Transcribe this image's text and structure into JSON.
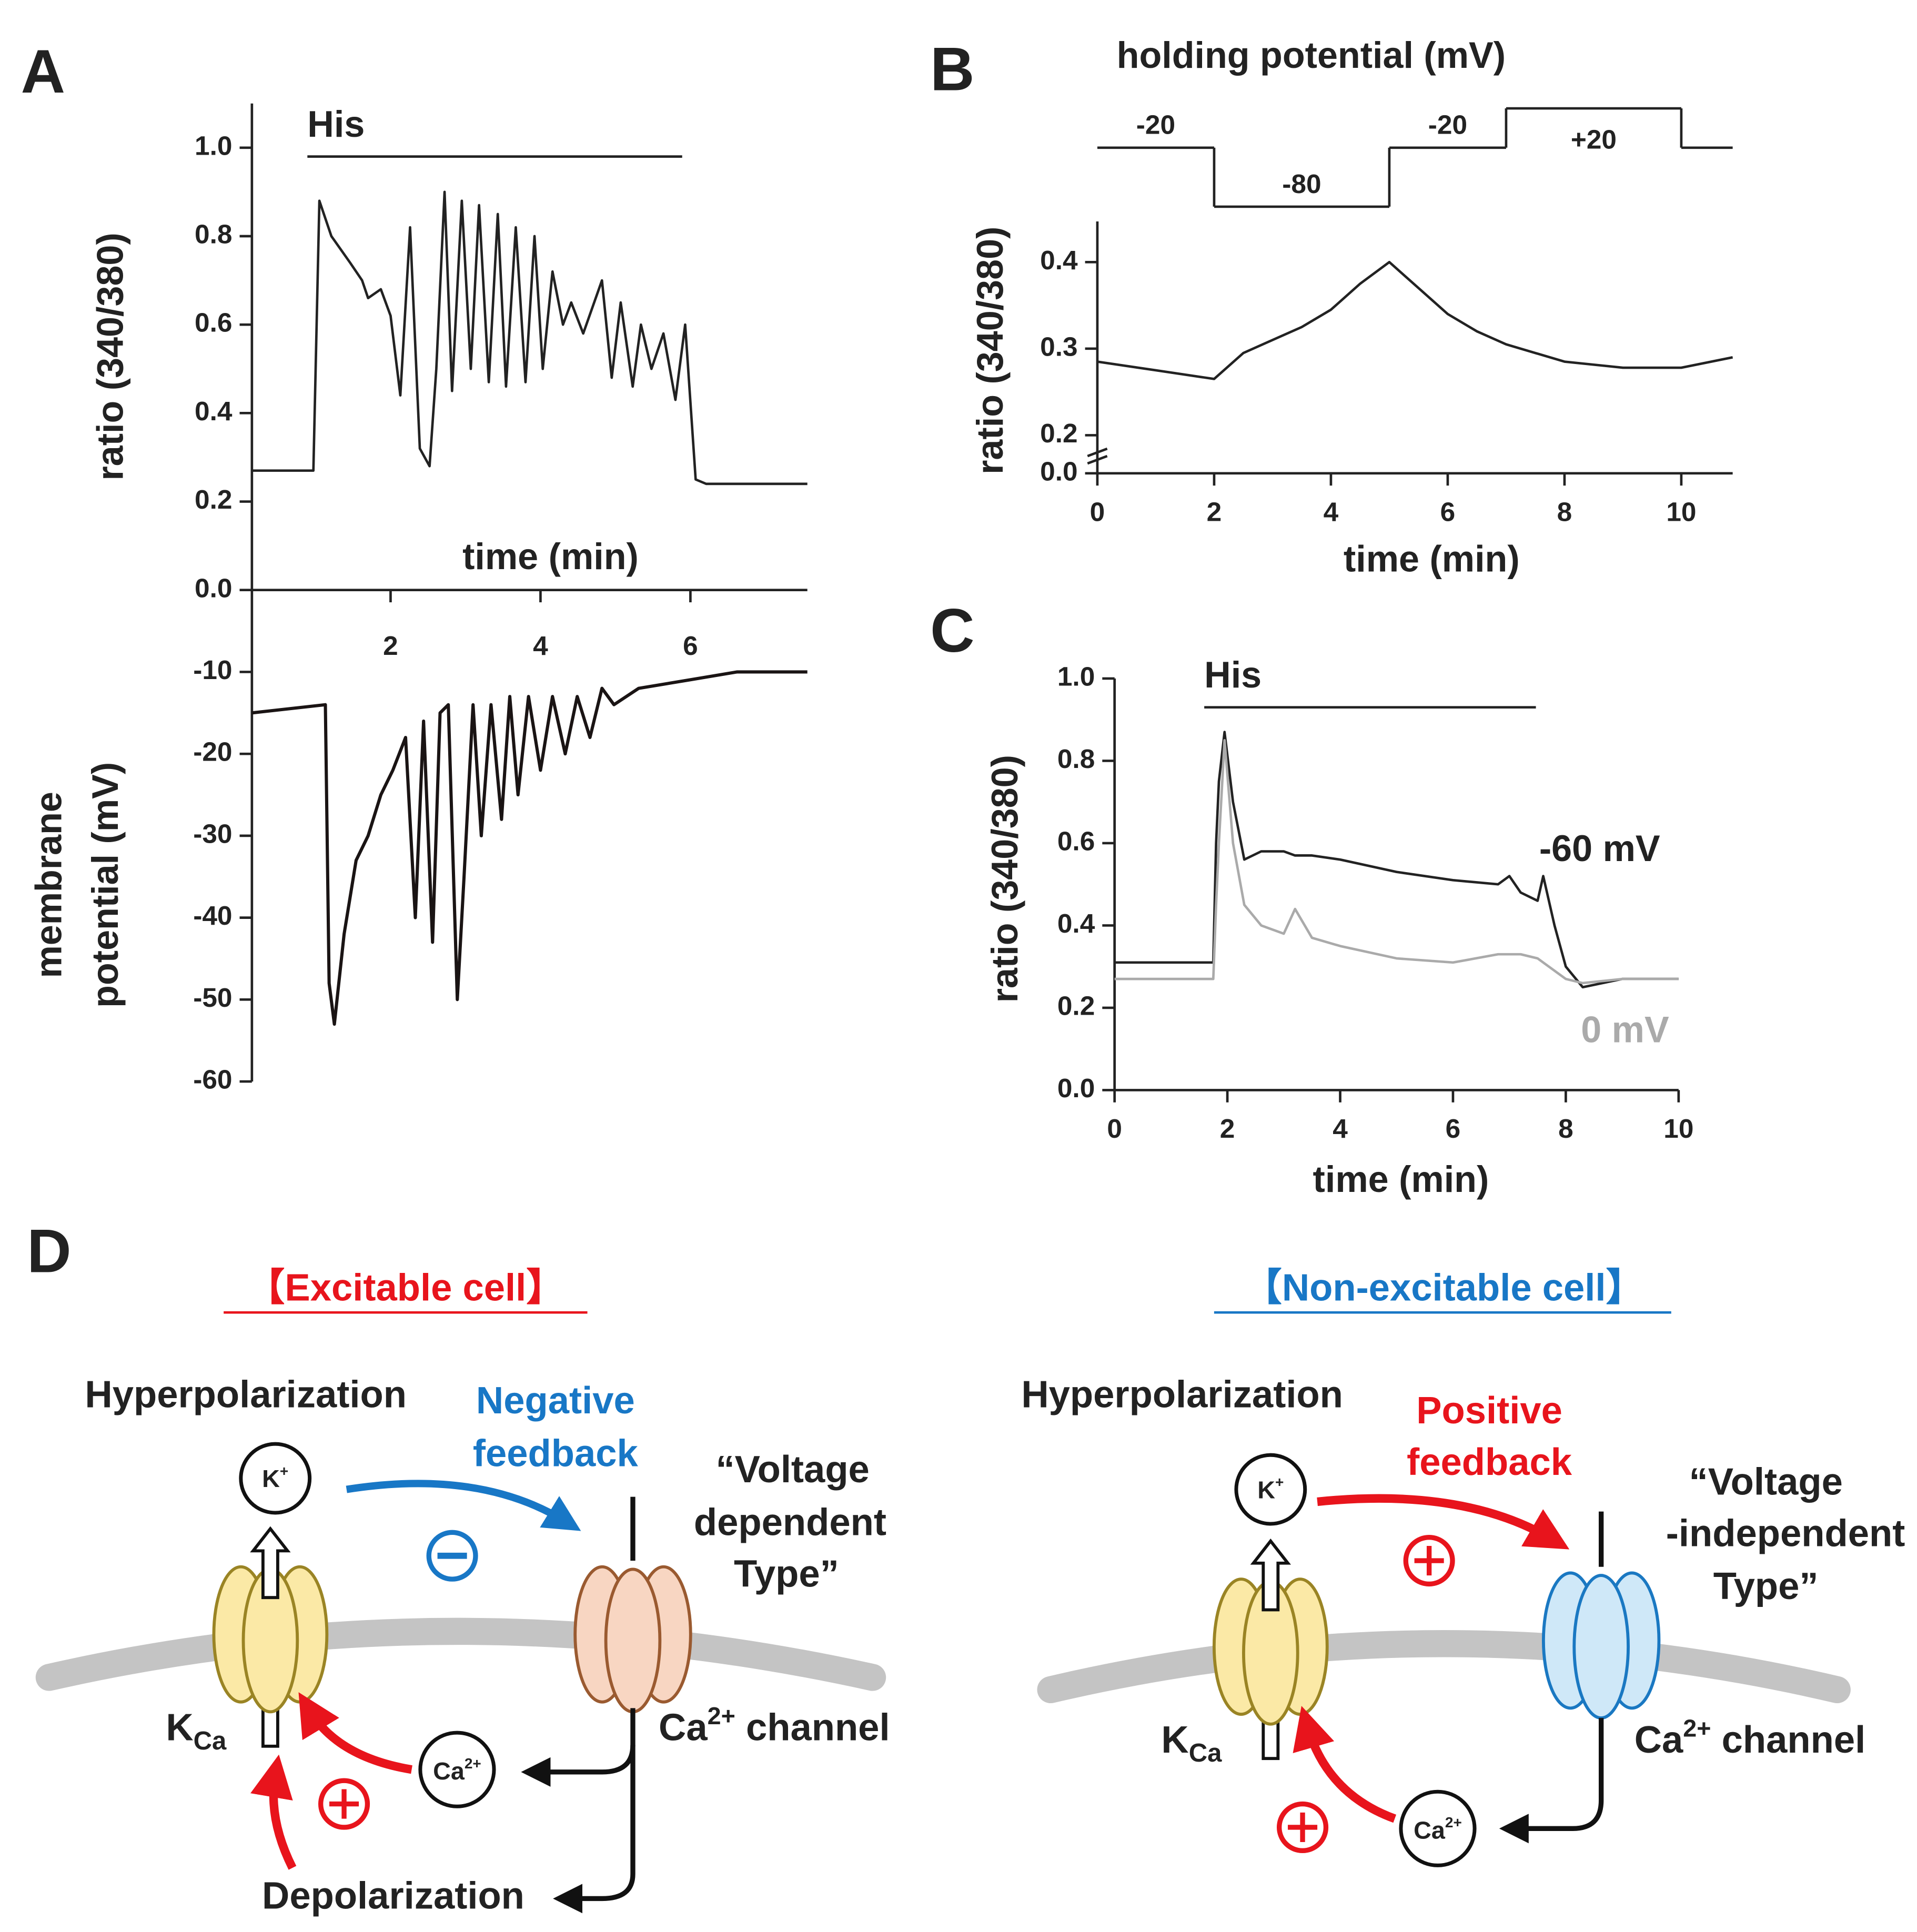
{
  "chart_data": [
    {
      "type": "line",
      "panel": "A",
      "ylabel": "ratio (340/380)",
      "xlabel": "time (min)",
      "color": "#222222",
      "stimulus": {
        "label": "His",
        "start": 0.89,
        "end": 5.89,
        "level": 0.98
      },
      "x": [
        0.15,
        0.97,
        1.05,
        1.21,
        1.46,
        1.62,
        1.7,
        1.87,
        2.0,
        2.13,
        2.26,
        2.39,
        2.52,
        2.61,
        2.72,
        2.82,
        2.95,
        3.07,
        3.18,
        3.31,
        3.43,
        3.54,
        3.67,
        3.8,
        3.92,
        4.03,
        4.16,
        4.3,
        4.41,
        4.57,
        4.82,
        4.95,
        5.07,
        5.23,
        5.34,
        5.48,
        5.64,
        5.8,
        5.93,
        6.07,
        6.21,
        7.56
      ],
      "values": [
        0.27,
        0.27,
        0.88,
        0.8,
        0.74,
        0.7,
        0.66,
        0.68,
        0.62,
        0.44,
        0.82,
        0.32,
        0.28,
        0.5,
        0.9,
        0.45,
        0.88,
        0.5,
        0.87,
        0.47,
        0.85,
        0.46,
        0.82,
        0.47,
        0.8,
        0.5,
        0.72,
        0.6,
        0.65,
        0.58,
        0.7,
        0.48,
        0.65,
        0.46,
        0.6,
        0.5,
        0.58,
        0.43,
        0.6,
        0.25,
        0.24,
        0.24
      ],
      "xlim": [
        0.15,
        7.56
      ],
      "xticks": [
        2,
        4,
        6
      ],
      "ylim": [
        0,
        1.1
      ],
      "yticks": [
        {
          "value": 0,
          "label": "0.0"
        },
        0.2,
        0.4,
        0.6,
        0.8,
        {
          "value": 1,
          "label": "1.0"
        }
      ]
    },
    {
      "type": "line",
      "ylabel": [
        "membrane",
        "potential (mV)"
      ],
      "color": "#1a1414",
      "x": [
        0.15,
        1.13,
        1.18,
        1.25,
        1.38,
        1.54,
        1.7,
        1.87,
        2.03,
        2.2,
        2.33,
        2.44,
        2.56,
        2.66,
        2.77,
        2.89,
        2.98,
        3.1,
        3.21,
        3.34,
        3.48,
        3.59,
        3.7,
        3.84,
        4.0,
        4.16,
        4.33,
        4.49,
        4.66,
        4.82,
        4.98,
        5.31,
        5.97,
        6.62,
        7.56
      ],
      "values": [
        -15,
        -14,
        -48,
        -53,
        -42,
        -33,
        -30,
        -25,
        -22,
        -18,
        -40,
        -16,
        -43,
        -15,
        -14,
        -50,
        -35,
        -14,
        -30,
        -14,
        -28,
        -13,
        -25,
        -13,
        -22,
        -13,
        -20,
        -13,
        -18,
        -12,
        -14,
        -12,
        -11,
        -10,
        -10
      ],
      "xlim": [
        0.15,
        7.56
      ],
      "ylim": [
        -60,
        0
      ],
      "yticks": [
        -10,
        -20,
        -30,
        -40,
        -50,
        -60
      ]
    },
    {
      "type": "line",
      "panel": "B",
      "title": "holding potential (mV)",
      "ylabel": "ratio (340/380)",
      "xlabel": "time (min)",
      "color": "#222222",
      "protocol": {
        "edges": [
          0,
          2,
          5,
          7,
          10,
          10.88
        ],
        "values": [
          -20,
          -80,
          -20,
          20,
          -20
        ],
        "value_labels": [
          "-20",
          "-80",
          "-20",
          "+20",
          null
        ]
      },
      "x": [
        0,
        1,
        2,
        2.5,
        3,
        3.5,
        4,
        4.5,
        5,
        5.5,
        6,
        6.5,
        7,
        7.5,
        8,
        9,
        10,
        10.88
      ],
      "values": [
        0.285,
        0.275,
        0.265,
        0.295,
        0.31,
        0.325,
        0.345,
        0.375,
        0.4,
        0.37,
        0.34,
        0.32,
        0.305,
        0.295,
        0.285,
        0.278,
        0.278,
        0.29
      ],
      "xlim": [
        0,
        10.88
      ],
      "xticks": [
        0,
        2,
        4,
        6,
        8,
        10
      ],
      "ylim": [
        0.156,
        0.447
      ],
      "yticks": [
        0.2,
        0.3,
        0.4
      ],
      "ybreak_tick": {
        "value": 0,
        "label": "0.0"
      }
    },
    {
      "type": "line",
      "panel": "C",
      "ylabel": "ratio (340/380)",
      "xlabel": "time (min)",
      "stimulus": {
        "label": "His",
        "start": 1.59,
        "end": 7.47,
        "level": 0.93
      },
      "x": [
        0,
        1.75,
        1.8,
        1.85,
        1.95,
        2.1,
        2.3,
        2.6,
        3,
        3.2,
        3.5,
        4,
        5,
        6,
        6.8,
        7,
        7.2,
        7.5,
        7.6,
        7.8,
        8,
        8.3,
        9,
        10
      ],
      "series": [
        {
          "name": "-60 mV",
          "color": "#222222",
          "values": [
            0.31,
            0.31,
            0.6,
            0.75,
            0.87,
            0.7,
            0.56,
            0.58,
            0.58,
            0.57,
            0.57,
            0.56,
            0.53,
            0.51,
            0.5,
            0.52,
            0.48,
            0.46,
            0.52,
            0.4,
            0.3,
            0.25,
            0.27,
            0.27
          ]
        },
        {
          "name": "0 mV",
          "color": "#aaaaaa",
          "values": [
            0.27,
            0.27,
            0.45,
            0.6,
            0.85,
            0.6,
            0.45,
            0.4,
            0.38,
            0.44,
            0.37,
            0.35,
            0.32,
            0.31,
            0.33,
            0.33,
            0.33,
            0.32,
            0.31,
            0.29,
            0.27,
            0.26,
            0.27,
            0.27
          ]
        }
      ],
      "xlim": [
        0,
        10
      ],
      "xticks": [
        0,
        2,
        4,
        6,
        8,
        10
      ],
      "ylim": [
        0,
        1
      ],
      "yticks": [
        {
          "value": 0,
          "label": "0.0"
        },
        0.2,
        0.4,
        0.6,
        0.8,
        {
          "value": 1,
          "label": "1.0"
        }
      ]
    }
  ],
  "diagram": {
    "label": "D",
    "panels": [
      {
        "heading": "【Excitable cell】",
        "input": "Hyperpolarization",
        "feedback": [
          "Negative",
          "feedback"
        ],
        "channel_type": [
          "“Voltage",
          "dependent",
          "Type”"
        ],
        "k_ion": {
          "base": "K",
          "sup": "+"
        },
        "kca": {
          "base": "K",
          "sub": "Ca"
        },
        "ca_ion": {
          "base": "Ca",
          "sup": "2+"
        },
        "channel": {
          "base": "Ca",
          "sup": "2+",
          "rest": " channel"
        },
        "output": "Depolarization"
      },
      {
        "heading": "【Non-excitable cell】",
        "input": "Hyperpolarization",
        "feedback": [
          "Positive",
          "feedback"
        ],
        "channel_type": [
          "“Voltage",
          "-independent",
          "Type”"
        ],
        "k_ion": {
          "base": "K",
          "sup": "+"
        },
        "kca": {
          "base": "K",
          "sub": "Ca"
        },
        "ca_ion": {
          "base": "Ca",
          "sup": "2+"
        },
        "channel": {
          "base": "Ca",
          "sup": "2+",
          "rest": " channel"
        }
      }
    ]
  }
}
